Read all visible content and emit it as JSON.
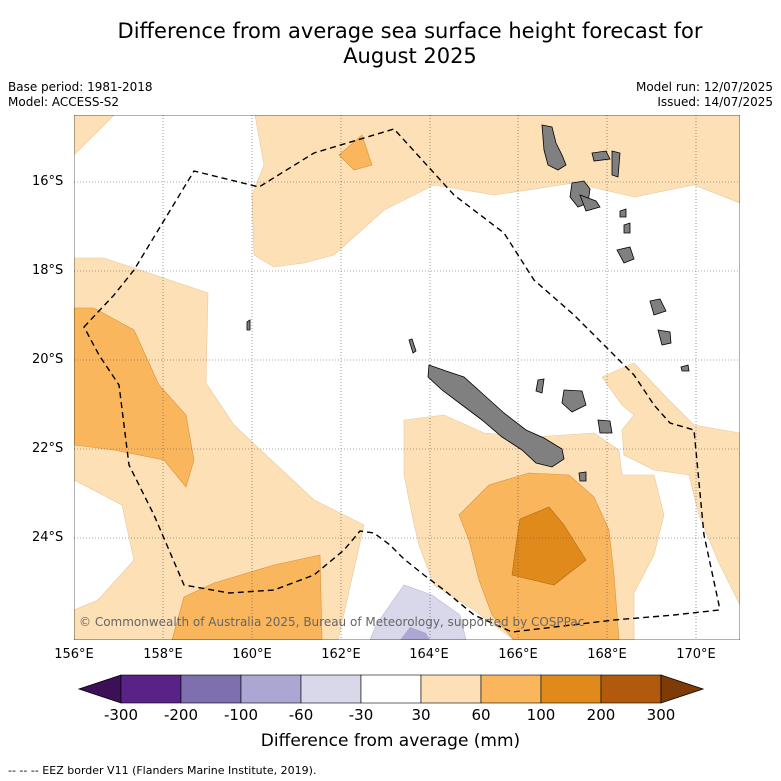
{
  "title_line1": "Difference from average sea surface height forecast for",
  "title_line2": "August 2025",
  "meta_left": [
    "Base period: 1981-2018",
    "Model: ACCESS-S2"
  ],
  "meta_right": [
    "Model run: 12/07/2025",
    "Issued: 14/07/2025"
  ],
  "lat_labels": [
    "16°S",
    "18°S",
    "20°S",
    "22°S",
    "24°S"
  ],
  "lon_labels": [
    "156°E",
    "158°E",
    "160°E",
    "162°E",
    "164°E",
    "166°E",
    "168°E",
    "170°E"
  ],
  "copyright": "© Commonwealth of Australia 2025, Bureau of Meteorology, supported by COSPPac",
  "colorbar": {
    "ticks": [
      "-300",
      "-200",
      "-100",
      "-60",
      "-30",
      "30",
      "60",
      "100",
      "200",
      "300"
    ],
    "colors": [
      "#3c0f57",
      "#582287",
      "#7e70ae",
      "#aca6d2",
      "#d8d8ea",
      "#ffffff",
      "#fde0b6",
      "#fab65c",
      "#e08a1c",
      "#b25a0c",
      "#7f3b06"
    ],
    "title": "Difference from average (mm)"
  },
  "footer": "-- -- -- EEZ border V11 (Flanders Marine Institute, 2019)."
}
